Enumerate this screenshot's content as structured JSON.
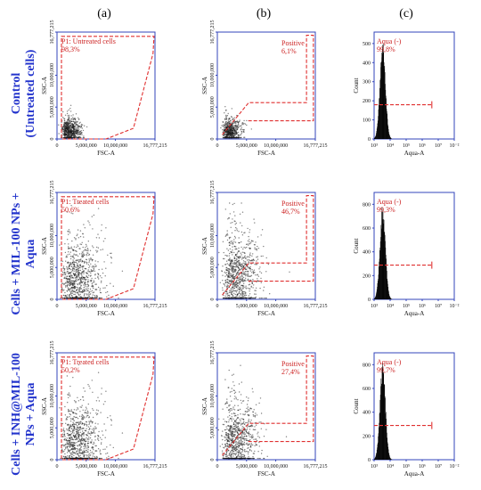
{
  "column_headers": [
    "(a)",
    "(b)",
    "(c)"
  ],
  "row_labels": [
    [
      "Control",
      "(Untreated cells)"
    ],
    [
      "Cells + MIL-100 NPs +",
      "Aqua"
    ],
    [
      "Cells + INH@MIL-100",
      "NPs + Aqua"
    ]
  ],
  "colors": {
    "axis": "#3344bb",
    "gate": "#e03030",
    "gate_text": "#cc2222",
    "row_label": "#2233cc",
    "dots": "#1a1a1a"
  },
  "chart_data": [
    {
      "id": "a1",
      "type": "scatter",
      "xlabel": "FSC-A",
      "ylabel": "SSC-A",
      "xlim": [
        0,
        16777215
      ],
      "ylim": [
        0,
        16777215
      ],
      "xticks": [
        "0",
        "5,000,000",
        "10,000,000",
        "16,777,215"
      ],
      "yticks": [
        "0",
        "5,000,000",
        "10,000,000",
        "16,777,215"
      ],
      "gate": {
        "label": "P1: Untreated cells",
        "percent": "98,3%"
      },
      "density": {
        "cx": 1700000,
        "cy": 1300000,
        "sx": 1200000,
        "sy": 950000,
        "n": 650
      }
    },
    {
      "id": "b1",
      "type": "scatter",
      "xlabel": "FSC-A",
      "ylabel": "SSC-A",
      "xlim": [
        0,
        16777215
      ],
      "ylim": [
        0,
        16777215
      ],
      "xticks": [
        "0",
        "5,000,000",
        "10,000,000",
        "16,777,215"
      ],
      "yticks": [
        "0",
        "5,000,000",
        "10,000,000",
        "16,777,215"
      ],
      "gate": {
        "label": "Positive",
        "percent": "6,1%"
      },
      "density": {
        "cx": 1700000,
        "cy": 1200000,
        "sx": 1100000,
        "sy": 900000,
        "n": 600
      }
    },
    {
      "id": "c1",
      "type": "histogram",
      "xlabel": "Aqua-A",
      "ylabel": "Count",
      "xticks": [
        "10³",
        "10⁴",
        "10⁵",
        "10⁶",
        "10⁷",
        "10⁻²"
      ],
      "yticks": [
        "0",
        "100",
        "200",
        "300",
        "400",
        "500"
      ],
      "ylim": [
        0,
        560
      ],
      "peak": 3.52,
      "peak_height": 520,
      "gate": {
        "label": "Aqua (-)",
        "percent": "99,8%"
      }
    },
    {
      "id": "a2",
      "type": "scatter",
      "xlabel": "FSC-A",
      "ylabel": "SSC-A",
      "xlim": [
        0,
        16777215
      ],
      "ylim": [
        0,
        16777215
      ],
      "xticks": [
        "0",
        "5,000,000",
        "10,000,000",
        "16,777,215"
      ],
      "yticks": [
        "0",
        "5,000,000",
        "10,000,000",
        "16,777,215"
      ],
      "gate": {
        "label": "P1: Treated cells",
        "percent": "50,6%"
      },
      "density": {
        "cx": 2600000,
        "cy": 3000000,
        "sx": 2400000,
        "sy": 3000000,
        "n": 900
      }
    },
    {
      "id": "b2",
      "type": "scatter",
      "xlabel": "FSC-A",
      "ylabel": "SSC-A",
      "xlim": [
        0,
        16777215
      ],
      "ylim": [
        0,
        16777215
      ],
      "xticks": [
        "0",
        "5,000,000",
        "10,000,000",
        "16,777,215"
      ],
      "yticks": [
        "0",
        "5,000,000",
        "10,000,000",
        "16,777,215"
      ],
      "gate": {
        "label": "Positive",
        "percent": "46,7%"
      },
      "density": {
        "cx": 2500000,
        "cy": 3500000,
        "sx": 2300000,
        "sy": 3300000,
        "n": 900
      }
    },
    {
      "id": "c2",
      "type": "histogram",
      "xlabel": "Aqua-A",
      "ylabel": "Count",
      "xticks": [
        "10³",
        "10⁴",
        "10⁵",
        "10⁶",
        "10⁷",
        "10⁻²"
      ],
      "yticks": [
        "0",
        "200",
        "400",
        "600",
        "800"
      ],
      "ylim": [
        0,
        900
      ],
      "peak": 3.52,
      "peak_height": 800,
      "gate": {
        "label": "Aqua (-)",
        "percent": "99,3%"
      }
    },
    {
      "id": "a3",
      "type": "scatter",
      "xlabel": "FSC-A",
      "ylabel": "SSC-A",
      "xlim": [
        0,
        16777215
      ],
      "ylim": [
        0,
        16777215
      ],
      "xticks": [
        "0",
        "5,000,000",
        "10,000,000",
        "16,777,215"
      ],
      "yticks": [
        "0",
        "5,000,000",
        "10,000,000",
        "16,777,215"
      ],
      "gate": {
        "label": "P1: Treated cells",
        "percent": "50,2%"
      },
      "density": {
        "cx": 2600000,
        "cy": 2800000,
        "sx": 2400000,
        "sy": 2900000,
        "n": 850
      }
    },
    {
      "id": "b3",
      "type": "scatter",
      "xlabel": "FSC-A",
      "ylabel": "SSC-A",
      "xlim": [
        0,
        16777215
      ],
      "ylim": [
        0,
        16777215
      ],
      "xticks": [
        "0",
        "5,000,000",
        "10,000,000",
        "16,777,215"
      ],
      "yticks": [
        "0",
        "5,000,000",
        "10,000,000",
        "16,777,215"
      ],
      "gate": {
        "label": "Positive",
        "percent": "27,4%"
      },
      "density": {
        "cx": 2400000,
        "cy": 2900000,
        "sx": 2200000,
        "sy": 3000000,
        "n": 850
      }
    },
    {
      "id": "c3",
      "type": "histogram",
      "xlabel": "Aqua-A",
      "ylabel": "Count",
      "xticks": [
        "10³",
        "10⁴",
        "10⁵",
        "10⁶",
        "10⁷",
        "10⁻²"
      ],
      "yticks": [
        "0",
        "200",
        "400",
        "600",
        "800"
      ],
      "ylim": [
        0,
        900
      ],
      "peak": 3.52,
      "peak_height": 820,
      "gate": {
        "label": "Aqua (-)",
        "percent": "99,7%"
      }
    }
  ]
}
